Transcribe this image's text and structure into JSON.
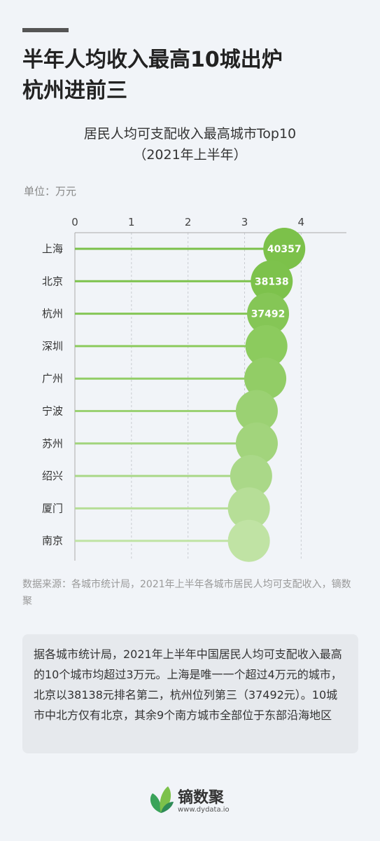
{
  "headline": [
    "半年人均收入最高10城出炉",
    "杭州进前三"
  ],
  "chart_data": {
    "type": "bar",
    "title": "居民人均可支配收入最高城市Top10",
    "subtitle": "（2021年上半年）",
    "unit": "单位：万元",
    "xlim": [
      0,
      4.8
    ],
    "ticks": [
      0,
      1,
      2,
      3,
      4
    ],
    "orientation": "horizontal",
    "categories": [
      "上海",
      "北京",
      "杭州",
      "深圳",
      "广州",
      "宁波",
      "苏州",
      "绍兴",
      "厦门",
      "南京"
    ],
    "values": [
      4.0357,
      3.8138,
      3.7492,
      3.72,
      3.7,
      3.55,
      3.55,
      3.45,
      3.41,
      3.41
    ],
    "labels": [
      "40357",
      "38138",
      "37492",
      "",
      "",
      "",
      "",
      "",
      "",
      ""
    ],
    "colors": [
      "#7cc14a",
      "#7dc24c",
      "#85c656",
      "#8ccb5e",
      "#92cd66",
      "#9bd173",
      "#a2d47c",
      "#aad888",
      "#b6de97",
      "#c0e3a4"
    ],
    "grid": true
  },
  "source": "数据来源：各城市统计局，2021年上半年各城市居民人均可支配收入，镝数聚",
  "summary": "据各城市统计局，2021年上半年中国居民人均可支配收入最高的10个城市均超过3万元。上海是唯一一个超过4万元的城市，北京以38138元排名第二，杭州位列第三（37492元）。10城市中北方仅有北京，其余9个南方城市全部位于东部沿海地区",
  "brand": {
    "name": "镝数聚",
    "url": "www.dydata.io"
  }
}
